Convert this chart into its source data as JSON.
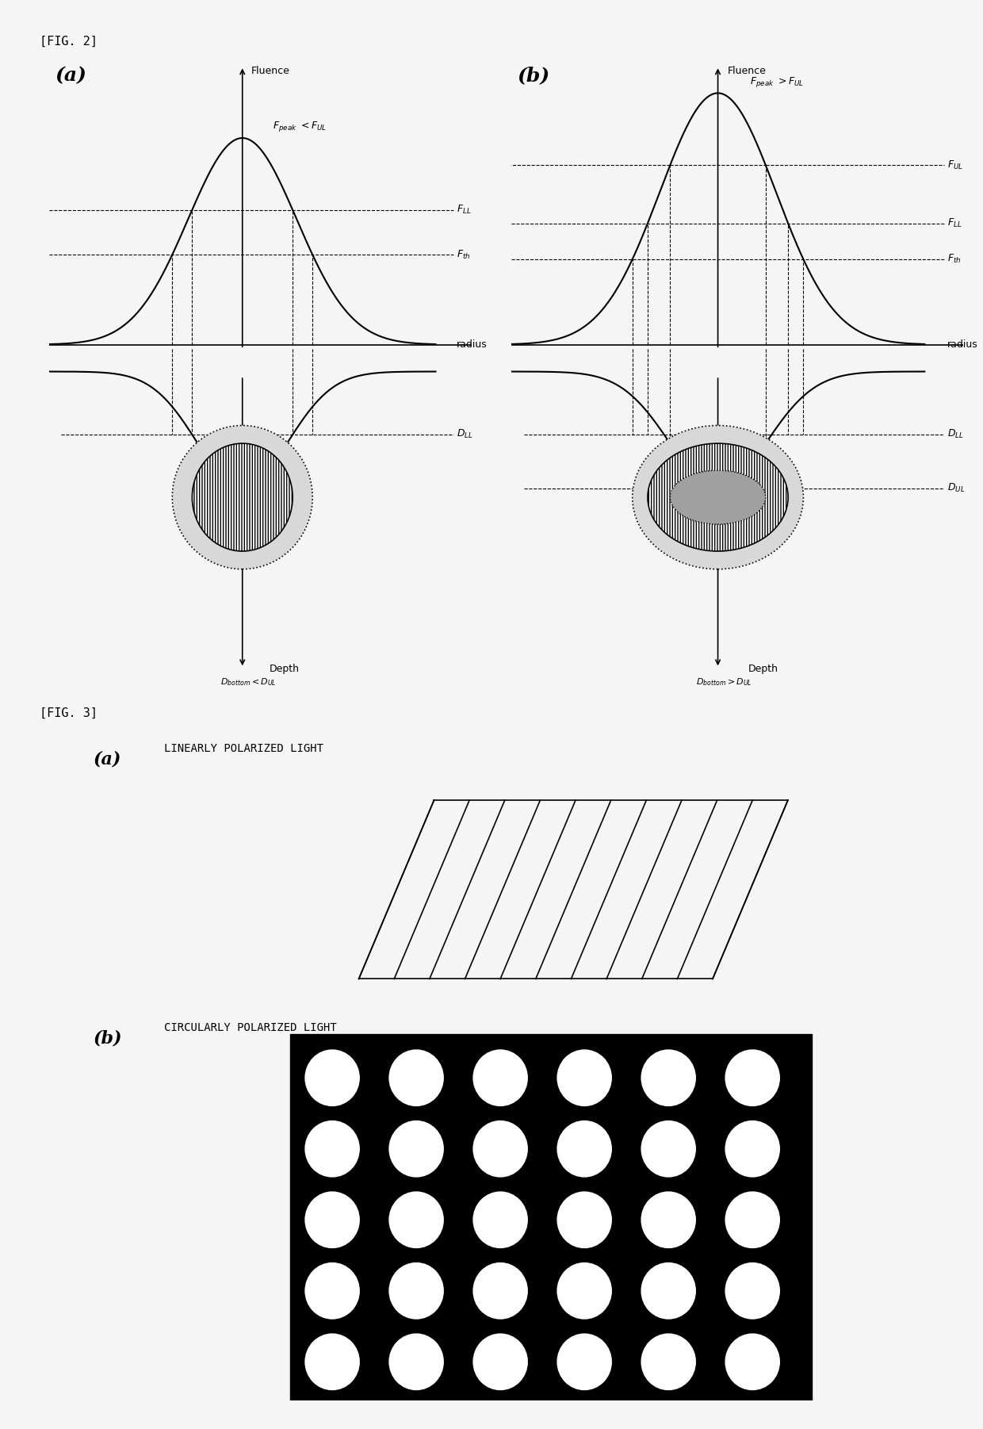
{
  "fig_width": 12.4,
  "fig_height": 18.02,
  "bg_color": "#f5f5f5",
  "fig2_label": "[FIG. 2]",
  "fig3_label": "[FIG. 3]",
  "panel_a_label": "(a)",
  "panel_b_label": "(b)",
  "panel_a2_label": "(a)",
  "panel_b2_label": "(b)",
  "fluence_label": "Fluence",
  "radius_label": "radius",
  "depth_label": "Depth",
  "a_peak_label": "F",
  "a_peak_sub": "peak",
  "a_peak_text": "F_peak <F_UL",
  "b_peak_text": "F_peak >F_UL",
  "FUL_label": "F_UL",
  "FLL_label": "F_LL",
  "Fth_label": "F_th",
  "DLL_label": "D_LL",
  "DUL_label": "D_UL",
  "Dbottom_a_label": "D_bottom <D_UL",
  "Dbottom_b_label": "D_bottom >D_UL",
  "lin_pol_label": "LINEARLY POLARIZED LIGHT",
  "circ_pol_label": "CIRCULARLY POLARIZED LIGHT"
}
